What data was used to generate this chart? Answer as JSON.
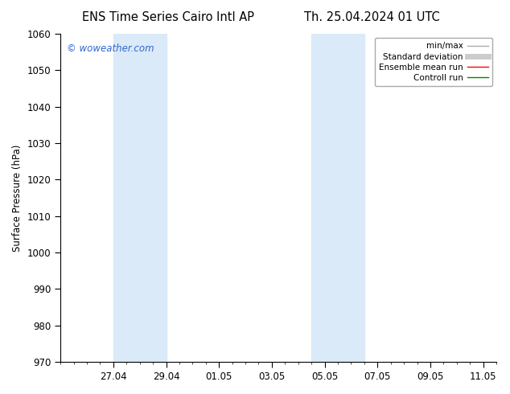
{
  "title_left": "ENS Time Series Cairo Intl AP",
  "title_right": "Th. 25.04.2024 01 UTC",
  "ylabel": "Surface Pressure (hPa)",
  "ylim": [
    970,
    1060
  ],
  "yticks": [
    970,
    980,
    990,
    1000,
    1010,
    1020,
    1030,
    1040,
    1050,
    1060
  ],
  "xtick_labels": [
    "27.04",
    "29.04",
    "01.05",
    "03.05",
    "05.05",
    "07.05",
    "09.05",
    "11.05"
  ],
  "xtick_positions": [
    2,
    4,
    6,
    8,
    10,
    12,
    14,
    16
  ],
  "xlim": [
    0,
    16.5
  ],
  "shaded_bands": [
    {
      "x_start": 2,
      "x_end": 4,
      "color": "#daeaf8"
    },
    {
      "x_start": 9.5,
      "x_end": 11.5,
      "color": "#daeaf8"
    }
  ],
  "watermark_text": "© woweather.com",
  "watermark_color": "#3366cc",
  "background_color": "#ffffff",
  "legend_entries": [
    {
      "label": "min/max",
      "color": "#aaaaaa",
      "lw": 1.0
    },
    {
      "label": "Standard deviation",
      "color": "#cccccc",
      "lw": 5
    },
    {
      "label": "Ensemble mean run",
      "color": "#ff0000",
      "lw": 1.0
    },
    {
      "label": "Controll run",
      "color": "#008800",
      "lw": 1.0
    }
  ],
  "title_fontsize": 10.5,
  "tick_fontsize": 8.5,
  "ylabel_fontsize": 8.5,
  "legend_fontsize": 7.5,
  "watermark_fontsize": 8.5
}
